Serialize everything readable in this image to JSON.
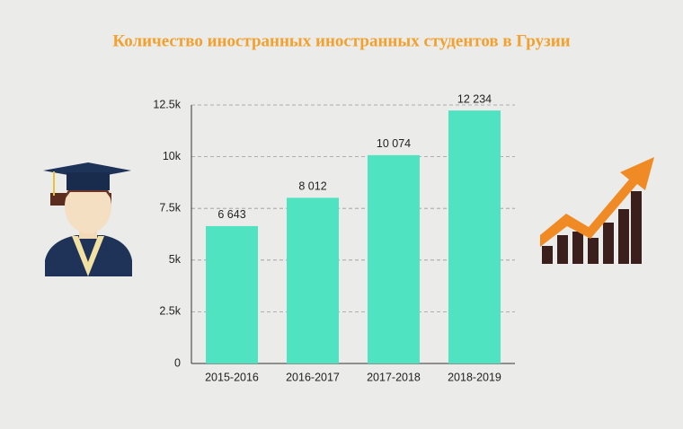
{
  "chart_data": {
    "type": "bar",
    "title": "Количество иностранных иностранных студентов в Грузии",
    "categories": [
      "2015-2016",
      "2016-2017",
      "2017-2018",
      "2018-2019"
    ],
    "values": [
      6643,
      8012,
      10074,
      12234
    ],
    "value_labels": [
      "6 643",
      "8 012",
      "10 074",
      "12 234"
    ],
    "color": "#50e3c2",
    "ylim": [
      0,
      12500
    ],
    "yticks": [
      0,
      {
        "value": 2500,
        "label": "2.5k"
      },
      {
        "value": 5000,
        "label": "5k"
      },
      {
        "value": 7500,
        "label": "7.5k"
      },
      {
        "value": 10000,
        "label": "10k"
      },
      {
        "value": 12500,
        "label": "12.5k"
      }
    ],
    "grid": true
  }
}
